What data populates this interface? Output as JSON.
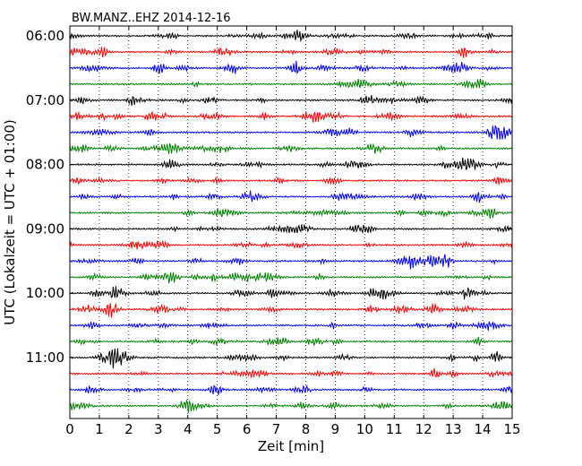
{
  "chart_data": {
    "type": "line",
    "title": "BW.MANZ..EHZ 2014-12-16",
    "xlabel": "Zeit  [min]",
    "ylabel": "UTC (Lokalzeit = UTC + 01:00)",
    "xlim": [
      0,
      15
    ],
    "x_ticks": [
      0,
      1,
      2,
      3,
      4,
      5,
      6,
      7,
      8,
      9,
      10,
      11,
      12,
      13,
      14,
      15
    ],
    "y_ticks": [
      "06:00",
      "07:00",
      "08:00",
      "09:00",
      "10:00",
      "11:00"
    ],
    "grid": "vertical dotted",
    "trace_colors": [
      "#000000",
      "#ff0000",
      "#0000ff",
      "#008000"
    ],
    "traces": [
      "06:00",
      "06:15",
      "06:30",
      "06:45",
      "07:00",
      "07:15",
      "07:30",
      "07:45",
      "08:00",
      "08:15",
      "08:30",
      "08:45",
      "09:00",
      "09:15",
      "09:30",
      "09:45",
      "10:00",
      "10:15",
      "10:30",
      "10:45",
      "11:00",
      "11:15",
      "11:30",
      "11:45"
    ]
  }
}
